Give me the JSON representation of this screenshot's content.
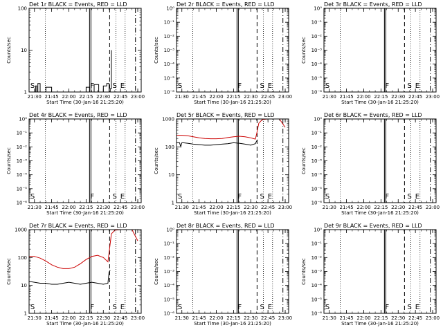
{
  "figure": {
    "background": "#ffffff",
    "event_color": "#000000",
    "lld_color": "#cc0000"
  },
  "chart_data": [
    {
      "type": "line",
      "title": "Det 1r BLACK = Events, RED = LLD",
      "xlabel": "Start Time (30-Jan-16 21:25:20)",
      "ylabel": "Counts/sec",
      "xtick_labels": [
        "21:30",
        "21:45",
        "22:00",
        "22:15",
        "22:30",
        "22:45",
        "23:00"
      ],
      "y_scale": "log",
      "ylim": [
        1,
        100
      ],
      "ytick_labels": [
        "1",
        "10",
        "100"
      ],
      "markers": [
        "S",
        "F",
        "S",
        "E"
      ],
      "series": [
        {
          "role": "events",
          "x": [
            "21:25",
            "21:29",
            "21:31",
            "21:32",
            "21:33",
            "21:35",
            "21:37",
            "21:40",
            "21:45",
            "22:00",
            "22:10",
            "22:15",
            "22:18",
            "22:22",
            "22:26",
            "22:30",
            "22:33",
            "22:35",
            "22:36",
            "22:37"
          ],
          "y": [
            1.0,
            1.0,
            1.4,
            1.0,
            1.6,
            1.0,
            1.0,
            1.3,
            1.0,
            1.0,
            1.0,
            1.3,
            1.0,
            1.5,
            1.0,
            1.4,
            1.6,
            1.0,
            1.2,
            10.0
          ]
        }
      ]
    },
    {
      "type": "line",
      "title": "Det 2r BLACK = Events, RED = LLD",
      "xlabel": "Start Time (30-Jan-16 21:25:20)",
      "ylabel": "Counts/sec",
      "xtick_labels": [
        "21:30",
        "21:45",
        "22:00",
        "22:15",
        "22:30",
        "22:45",
        "23:00"
      ],
      "y_scale": "log",
      "ylim": [
        1e-06,
        1
      ],
      "ytick_labels": [
        "10⁻⁶",
        "10⁻⁵",
        "10⁻⁴",
        "10⁻³",
        "10⁻²",
        "10⁻¹",
        "10⁰"
      ],
      "markers": [
        "S",
        "F",
        "S",
        "E"
      ],
      "series": []
    },
    {
      "type": "line",
      "title": "Det 3r BLACK = Events, RED = LLD",
      "xlabel": "Start Time (30-Jan-16 21:25:20)",
      "ylabel": "Counts/sec",
      "xtick_labels": [
        "21:30",
        "21:45",
        "22:00",
        "22:15",
        "22:30",
        "22:45",
        "23:00"
      ],
      "y_scale": "log",
      "ylim": [
        1e-06,
        1
      ],
      "ytick_labels": [
        "10⁻⁶",
        "10⁻⁵",
        "10⁻⁴",
        "10⁻³",
        "10⁻²",
        "10⁻¹",
        "10⁰"
      ],
      "markers": [
        "S",
        "F",
        "S",
        "E"
      ],
      "series": []
    },
    {
      "type": "line",
      "title": "Det 4r BLACK = Events, RED = LLD",
      "xlabel": "Start Time (30-Jan-16 21:25:20)",
      "ylabel": "Counts/sec",
      "xtick_labels": [
        "21:30",
        "21:45",
        "22:00",
        "22:15",
        "22:30",
        "22:45",
        "23:00"
      ],
      "y_scale": "log",
      "ylim": [
        1e-06,
        1
      ],
      "ytick_labels": [
        "10⁻⁶",
        "10⁻⁵",
        "10⁻⁴",
        "10⁻³",
        "10⁻²",
        "10⁻¹",
        "10⁰"
      ],
      "markers": [
        "S",
        "F",
        "S",
        "E"
      ],
      "series": []
    },
    {
      "type": "line",
      "title": "Det 5r BLACK = Events, RED = LLD",
      "xlabel": "Start Time (30-Jan-16 21:25:20)",
      "ylabel": "Counts/sec",
      "xtick_labels": [
        "21:30",
        "21:45",
        "22:00",
        "22:15",
        "22:30",
        "22:45",
        "23:00"
      ],
      "y_scale": "log",
      "ylim": [
        1,
        1000
      ],
      "ytick_labels": [
        "1",
        "10",
        "100",
        "1000"
      ],
      "markers": [
        "S",
        "F",
        "S",
        "E"
      ],
      "series": [
        {
          "role": "lld",
          "x": [
            "21:25",
            "21:30",
            "21:35",
            "21:40",
            "21:45",
            "21:50",
            "21:55",
            "22:00",
            "22:05",
            "22:10",
            "22:15",
            "22:20",
            "22:25",
            "22:30",
            "22:34",
            "22:35",
            "22:37",
            "22:40",
            "22:45",
            "22:55",
            "23:00"
          ],
          "y": [
            260,
            260,
            250,
            230,
            210,
            200,
            195,
            195,
            200,
            215,
            230,
            240,
            230,
            210,
            190,
            280,
            700,
            950,
            1000,
            1000,
            500
          ]
        },
        {
          "role": "events",
          "x": [
            "21:25",
            "21:28",
            "21:29",
            "21:30",
            "21:31",
            "21:35",
            "21:40",
            "21:45",
            "21:50",
            "21:55",
            "22:00",
            "22:05",
            "22:10",
            "22:15",
            "22:20",
            "22:25",
            "22:30",
            "22:34",
            "22:35",
            "22:36"
          ],
          "y": [
            140,
            140,
            100,
            140,
            140,
            135,
            125,
            120,
            115,
            115,
            120,
            125,
            130,
            140,
            135,
            125,
            115,
            130,
            160,
            180
          ]
        }
      ]
    },
    {
      "type": "line",
      "title": "Det 6r BLACK = Events, RED = LLD",
      "xlabel": "Start Time (30-Jan-16 21:25:20)",
      "ylabel": "Counts/sec",
      "xtick_labels": [
        "21:30",
        "21:45",
        "22:00",
        "22:15",
        "22:30",
        "22:45",
        "23:00"
      ],
      "y_scale": "log",
      "ylim": [
        1e-06,
        1
      ],
      "ytick_labels": [
        "10⁻⁶",
        "10⁻⁵",
        "10⁻⁴",
        "10⁻³",
        "10⁻²",
        "10⁻¹",
        "10⁰"
      ],
      "markers": [
        "S",
        "F",
        "S",
        "E"
      ],
      "series": []
    },
    {
      "type": "line",
      "title": "Det 7r BLACK = Events, RED = LLD",
      "xlabel": "Start Time (30-Jan-16 21:25:20)",
      "ylabel": "Counts/sec",
      "xtick_labels": [
        "21:30",
        "21:45",
        "22:00",
        "22:15",
        "22:30",
        "22:45",
        "23:00"
      ],
      "y_scale": "log",
      "ylim": [
        1,
        1000
      ],
      "ytick_labels": [
        "1",
        "10",
        "100",
        "1000"
      ],
      "markers": [
        "S",
        "F",
        "S",
        "E"
      ],
      "series": [
        {
          "role": "lld",
          "x": [
            "21:25",
            "21:30",
            "21:35",
            "21:40",
            "21:45",
            "21:50",
            "21:55",
            "22:00",
            "22:05",
            "22:10",
            "22:15",
            "22:20",
            "22:25",
            "22:30",
            "22:34",
            "22:35",
            "22:37",
            "22:40",
            "22:45",
            "22:55",
            "23:00"
          ],
          "y": [
            110,
            110,
            95,
            75,
            55,
            45,
            40,
            40,
            45,
            60,
            85,
            110,
            120,
            100,
            70,
            150,
            700,
            950,
            1000,
            1000,
            400
          ]
        },
        {
          "role": "events",
          "x": [
            "21:25",
            "21:30",
            "21:35",
            "21:40",
            "21:45",
            "21:50",
            "21:55",
            "22:00",
            "22:05",
            "22:10",
            "22:15",
            "22:20",
            "22:25",
            "22:30",
            "22:34",
            "22:35",
            "22:36"
          ],
          "y": [
            14,
            13,
            12,
            12,
            11,
            11,
            12,
            13,
            12,
            11,
            12,
            13,
            12,
            11,
            12,
            30,
            35
          ]
        }
      ]
    },
    {
      "type": "line",
      "title": "Det 8r BLACK = Events, RED = LLD",
      "xlabel": "Start Time (30-Jan-16 21:25:20)",
      "ylabel": "Counts/sec",
      "xtick_labels": [
        "21:30",
        "21:45",
        "22:00",
        "22:15",
        "22:30",
        "22:45",
        "23:00"
      ],
      "y_scale": "log",
      "ylim": [
        1e-06,
        1
      ],
      "ytick_labels": [
        "10⁻⁶",
        "10⁻⁵",
        "10⁻⁴",
        "10⁻³",
        "10⁻²",
        "10⁻¹",
        "10⁰"
      ],
      "markers": [
        "S",
        "F",
        "S",
        "E"
      ],
      "series": []
    },
    {
      "type": "line",
      "title": "Det 9r BLACK = Events, RED = LLD",
      "xlabel": "Start Time (30-Jan-16 21:25:20)",
      "ylabel": "Counts/sec",
      "xtick_labels": [
        "21:30",
        "21:45",
        "22:00",
        "22:15",
        "22:30",
        "22:45",
        "23:00"
      ],
      "y_scale": "log",
      "ylim": [
        1e-06,
        1
      ],
      "ytick_labels": [
        "10⁻⁶",
        "10⁻⁵",
        "10⁻⁴",
        "10⁻³",
        "10⁻²",
        "10⁻¹",
        "10⁰"
      ],
      "markers": [
        "S",
        "F",
        "S",
        "E"
      ],
      "series": []
    }
  ]
}
